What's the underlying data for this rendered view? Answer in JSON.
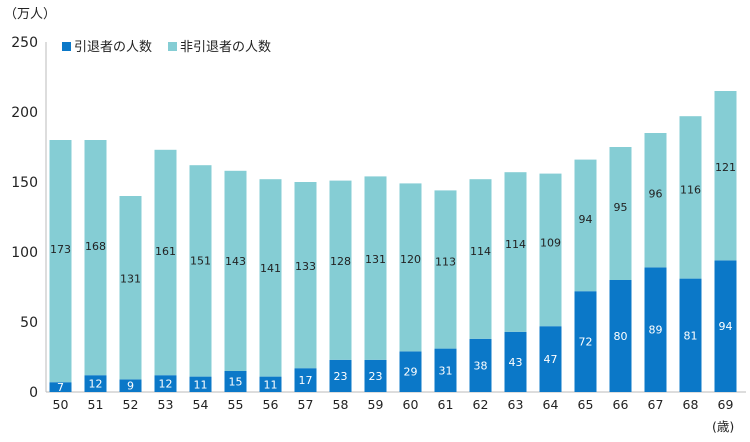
{
  "chart_data": {
    "type": "bar",
    "stacked": true,
    "y_unit_label": "（万人）",
    "x_unit_label": "(歳)",
    "ylim": [
      0,
      250
    ],
    "y_ticks": [
      "0",
      "50",
      "100",
      "150",
      "200",
      "250"
    ],
    "categories": [
      "50",
      "51",
      "52",
      "53",
      "54",
      "55",
      "56",
      "57",
      "58",
      "59",
      "60",
      "61",
      "62",
      "63",
      "64",
      "65",
      "66",
      "67",
      "68",
      "69"
    ],
    "series": [
      {
        "name": "引退者の人数",
        "color": "#0b78c8",
        "values": [
          7,
          12,
          9,
          12,
          11,
          15,
          11,
          17,
          23,
          23,
          29,
          31,
          38,
          43,
          47,
          72,
          80,
          89,
          81,
          94
        ],
        "labels": [
          "7",
          "12",
          "9",
          "12",
          "11",
          "15",
          "11",
          "17",
          "23",
          "23",
          "29",
          "31",
          "38",
          "43",
          "47",
          "72",
          "80",
          "89",
          "81",
          "94"
        ]
      },
      {
        "name": "非引退者の人数",
        "color": "#85cdd4",
        "values": [
          173,
          168,
          131,
          161,
          151,
          143,
          141,
          133,
          128,
          131,
          120,
          113,
          114,
          114,
          109,
          94,
          95,
          96,
          116,
          121
        ],
        "labels": [
          "173",
          "168",
          "131",
          "161",
          "151",
          "143",
          "141",
          "133",
          "128",
          "131",
          "120",
          "113",
          "114",
          "114",
          "109",
          "94",
          "95",
          "96",
          "116",
          "121"
        ]
      }
    ],
    "legend_position": "top-left"
  }
}
